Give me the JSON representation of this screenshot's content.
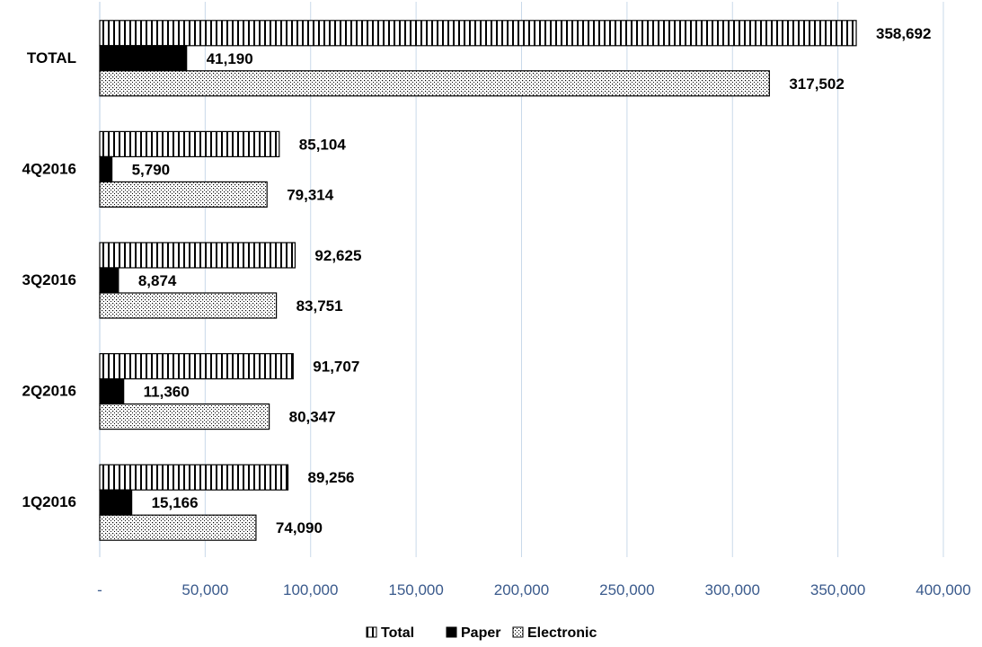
{
  "chart_data": {
    "type": "bar",
    "orientation": "horizontal",
    "categories": [
      "TOTAL",
      "4Q2016",
      "3Q2016",
      "2Q2016",
      "1Q2016"
    ],
    "series": [
      {
        "name": "Total",
        "values": [
          358692,
          85104,
          92625,
          91707,
          89256
        ],
        "value_labels": [
          "358,692",
          "85,104",
          "92,625",
          "91,707",
          "89,256"
        ],
        "pattern": "vertical-stripes"
      },
      {
        "name": "Paper",
        "values": [
          41190,
          5790,
          8874,
          11360,
          15166
        ],
        "value_labels": [
          "41,190",
          "5,790",
          "8,874",
          "11,360",
          "15,166"
        ],
        "pattern": "solid-black"
      },
      {
        "name": "Electronic",
        "values": [
          317502,
          79314,
          83751,
          80347,
          74090
        ],
        "value_labels": [
          "317,502",
          "79,314",
          "83,751",
          "80,347",
          "74,090"
        ],
        "pattern": "dots"
      }
    ],
    "xlim": [
      0,
      400000
    ],
    "x_ticks": [
      0,
      50000,
      100000,
      150000,
      200000,
      250000,
      300000,
      350000,
      400000
    ],
    "x_tick_labels": [
      "-",
      "50,000",
      "100,000",
      "150,000",
      "200,000",
      "250,000",
      "300,000",
      "350,000",
      "400,000"
    ],
    "grid": "vertical",
    "legend_position": "bottom",
    "colors": {
      "grid": "#c9d9ea",
      "tick_text": "#3a5a8c",
      "bar_outline": "#000000"
    }
  }
}
